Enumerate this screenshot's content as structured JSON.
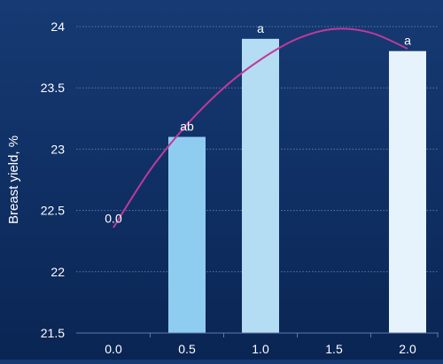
{
  "colors": {
    "background": "#12336b",
    "grid": "#5d79a8",
    "axis_text": "#ffffff",
    "curve": "#c0399a"
  },
  "chart_data": {
    "type": "bar",
    "ylabel": "Breast yield, %",
    "ylim": [
      21.5,
      24
    ],
    "y_ticks": [
      21.5,
      22,
      22.5,
      23,
      23.5,
      24
    ],
    "y_tick_labels": [
      "21.5",
      "22",
      "22.5",
      "23",
      "23.5",
      "24"
    ],
    "x_ticks": [
      0.0,
      0.5,
      1.0,
      1.5,
      2.0
    ],
    "x_tick_labels": [
      "0.0",
      "0.5",
      "1.0",
      "1.5",
      "2.0"
    ],
    "bars": [
      {
        "x": 0.0,
        "value": 21.5,
        "label": "0.0",
        "color": "#8fcdf0"
      },
      {
        "x": 0.5,
        "value": 23.1,
        "label": "ab",
        "color": "#8fcdf0"
      },
      {
        "x": 1.0,
        "value": 23.9,
        "label": "a",
        "color": "#b4dcf3"
      },
      {
        "x": 2.0,
        "value": 23.8,
        "label": "a",
        "color": "#e6f3fc"
      }
    ],
    "curve": {
      "type": "quadratic-fit",
      "x": [
        0.0,
        0.25,
        0.5,
        0.75,
        1.0,
        1.25,
        1.5,
        1.75,
        2.0
      ],
      "y": [
        22.36,
        22.83,
        23.2,
        23.5,
        23.73,
        23.9,
        23.98,
        23.95,
        23.82
      ]
    },
    "grid": "horizontal dotted"
  }
}
